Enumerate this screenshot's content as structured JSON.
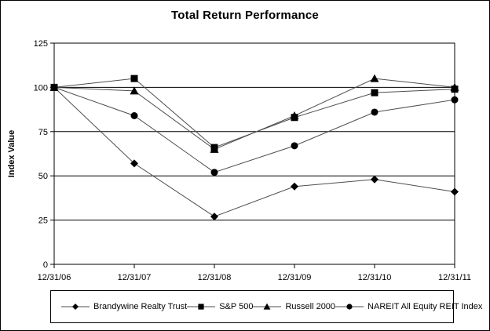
{
  "frame": {
    "background": "#ffffff",
    "border_color": "#000000"
  },
  "chart_data": {
    "type": "line",
    "title": "Total Return Performance",
    "ylabel": "Index Value",
    "xlabel": "",
    "categories": [
      "12/31/06",
      "12/31/07",
      "12/31/08",
      "12/31/09",
      "12/31/10",
      "12/31/11"
    ],
    "series": [
      {
        "name": "Brandywine Realty Trust",
        "marker": "diamond",
        "values": [
          100,
          57,
          27,
          44,
          48,
          41
        ]
      },
      {
        "name": "S&P 500",
        "marker": "square",
        "values": [
          100,
          105,
          66,
          83,
          97,
          99
        ]
      },
      {
        "name": "Russell 2000",
        "marker": "triangle",
        "values": [
          100,
          98,
          65,
          84,
          105,
          100
        ]
      },
      {
        "name": "NAREIT All Equity REIT Index",
        "marker": "circle",
        "values": [
          100,
          84,
          52,
          67,
          86,
          93
        ]
      }
    ],
    "ylim": [
      0,
      125
    ],
    "yticks": [
      0,
      25,
      50,
      75,
      100,
      125
    ],
    "grid": "horizontal",
    "legend_position": "bottom",
    "line_color": "#4d4d4d",
    "marker_color": "#000000",
    "axis_color": "#000000",
    "text_color": "#000000"
  }
}
